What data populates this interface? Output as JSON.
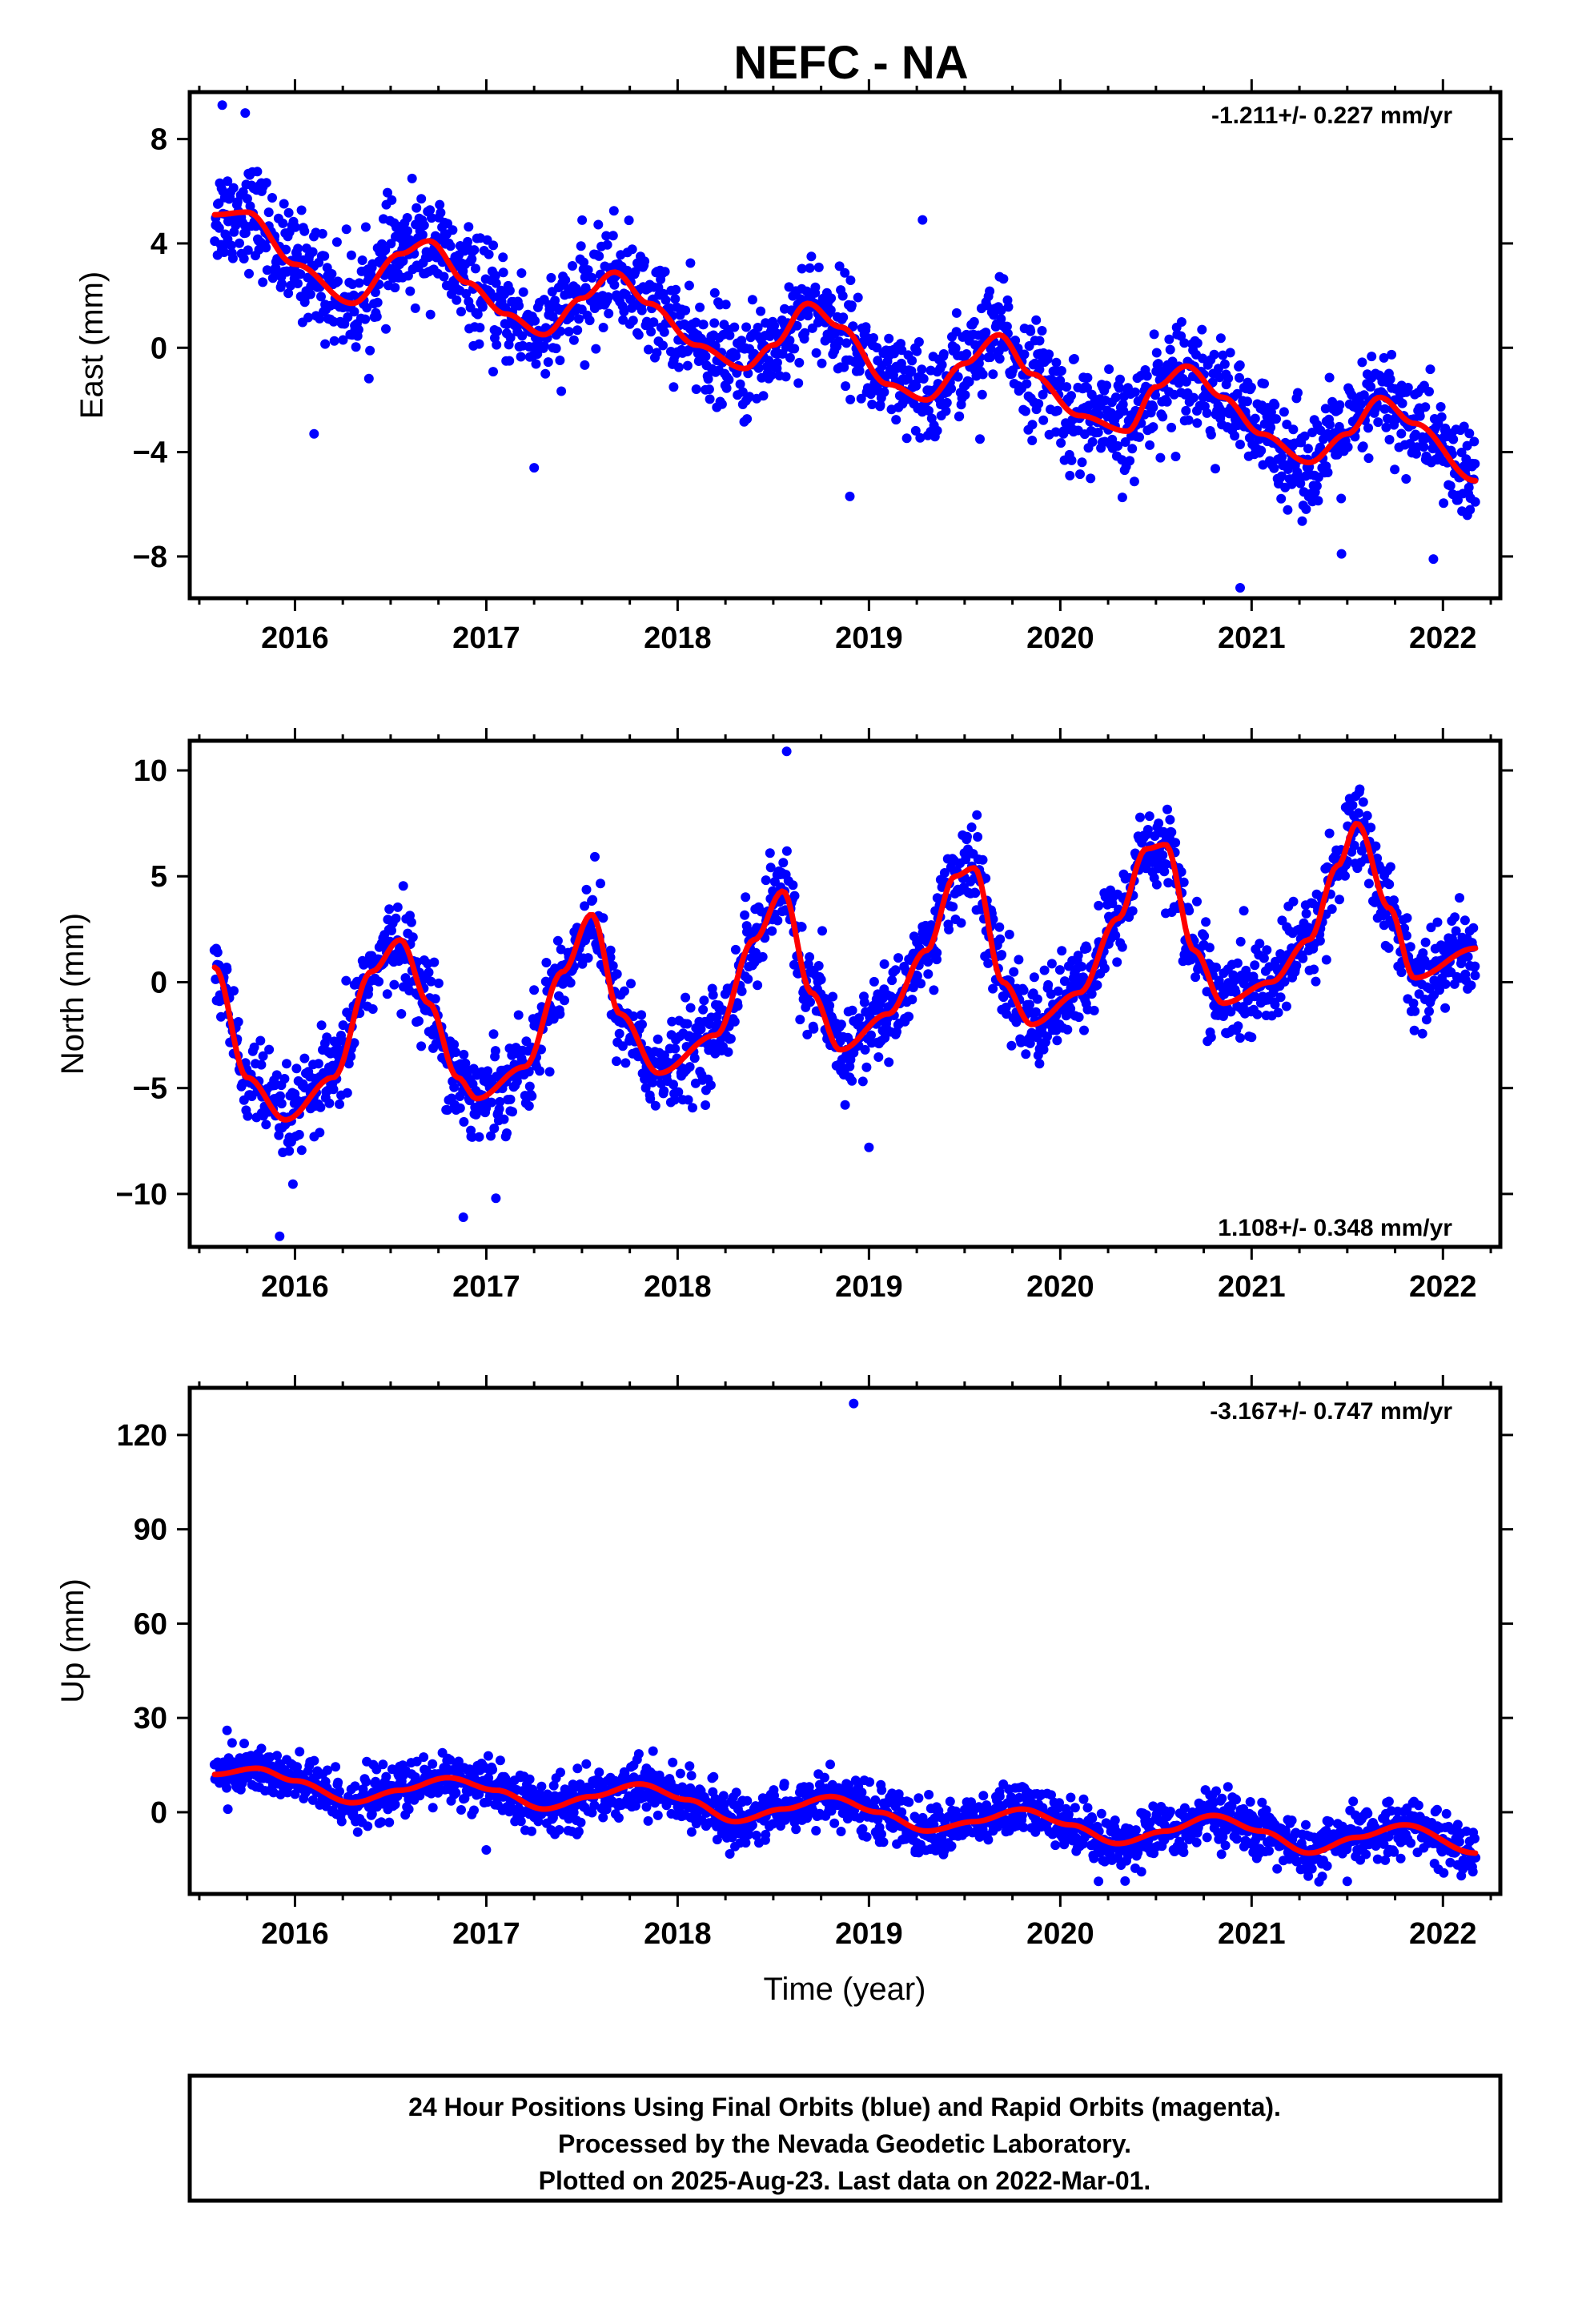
{
  "title": "NEFC - NA",
  "colors": {
    "final_orbits": "#0000ff",
    "fit_model": "#ff0000"
  },
  "chart_data": [
    {
      "id": "east",
      "type": "scatter",
      "ylabel": "East (mm)",
      "xlabel": "",
      "xlim": [
        2015.45,
        2022.3
      ],
      "ylim": [
        -9.6,
        9.8
      ],
      "xticks": [
        2016,
        2017,
        2018,
        2019,
        2020,
        2021,
        2022
      ],
      "yticks": [
        -8,
        -4,
        0,
        4,
        8
      ],
      "rate_text": "-1.211+/- 0.227 mm/yr",
      "rate_position": "top-right",
      "fit_curve": {
        "x": [
          2015.58,
          2015.75,
          2016.0,
          2016.3,
          2016.55,
          2016.7,
          2016.9,
          2017.1,
          2017.3,
          2017.5,
          2017.67,
          2017.85,
          2018.1,
          2018.35,
          2018.5,
          2018.68,
          2018.85,
          2019.1,
          2019.3,
          2019.5,
          2019.68,
          2019.85,
          2020.1,
          2020.35,
          2020.5,
          2020.66,
          2020.85,
          2021.05,
          2021.3,
          2021.5,
          2021.67,
          2021.85,
          2022.17
        ],
        "y": [
          5.1,
          5.2,
          3.2,
          1.7,
          3.6,
          4.1,
          2.5,
          1.3,
          0.5,
          1.9,
          2.9,
          1.7,
          0.1,
          -0.8,
          0.1,
          1.7,
          0.8,
          -1.4,
          -2.0,
          -0.6,
          0.5,
          -1.0,
          -2.6,
          -3.2,
          -1.5,
          -0.7,
          -1.9,
          -3.3,
          -4.4,
          -3.3,
          -1.9,
          -2.9,
          -5.1
        ]
      },
      "scatter_note": "dense daily positions scattered about the fit curve",
      "scatter_spread": 1.3,
      "scatter_outliers": [
        [
          2015.62,
          9.3
        ],
        [
          2015.74,
          9.0
        ],
        [
          2019.28,
          4.9
        ],
        [
          2016.1,
          -3.3
        ],
        [
          2017.25,
          -4.6
        ],
        [
          2018.9,
          -5.7
        ],
        [
          2019.58,
          -3.5
        ],
        [
          2020.05,
          -4.9
        ],
        [
          2020.94,
          -9.2
        ],
        [
          2021.47,
          -7.9
        ],
        [
          2021.95,
          -8.1
        ]
      ]
    },
    {
      "id": "north",
      "type": "scatter",
      "ylabel": "North (mm)",
      "xlabel": "",
      "xlim": [
        2015.45,
        2022.3
      ],
      "ylim": [
        -12.5,
        11.4
      ],
      "xticks": [
        2016,
        2017,
        2018,
        2019,
        2020,
        2021,
        2022
      ],
      "yticks": [
        -10,
        -5,
        0,
        5,
        10
      ],
      "rate_text": "1.108+/- 0.348 mm/yr",
      "rate_position": "bottom-right",
      "fit_curve": {
        "x": [
          2015.58,
          2015.75,
          2015.95,
          2016.2,
          2016.4,
          2016.55,
          2016.7,
          2016.85,
          2016.95,
          2017.2,
          2017.4,
          2017.55,
          2017.7,
          2017.9,
          2018.2,
          2018.4,
          2018.55,
          2018.7,
          2018.85,
          2019.1,
          2019.3,
          2019.45,
          2019.55,
          2019.7,
          2019.85,
          2020.1,
          2020.3,
          2020.45,
          2020.55,
          2020.7,
          2020.85,
          2021.1,
          2021.3,
          2021.45,
          2021.55,
          2021.72,
          2021.85,
          2022.17
        ],
        "y": [
          0.7,
          -4.5,
          -6.5,
          -4.5,
          0.5,
          2.0,
          -1.0,
          -4.5,
          -5.5,
          -4.0,
          0.5,
          3.2,
          -1.5,
          -4.3,
          -2.5,
          2.0,
          4.3,
          -0.5,
          -3.2,
          -1.5,
          1.5,
          5.0,
          5.4,
          0.0,
          -2.0,
          -0.5,
          3.0,
          6.3,
          6.5,
          1.5,
          -1.0,
          0.0,
          2.0,
          5.5,
          7.5,
          3.5,
          0.2,
          1.6
        ]
      },
      "scatter_note": "dense daily positions scattered about the fit curve; 2018 summer peak reaches about 10 mm",
      "scatter_spread": 1.4,
      "scatter_outliers": [
        [
          2015.92,
          -12.0
        ],
        [
          2016.88,
          -11.1
        ],
        [
          2017.05,
          -10.2
        ],
        [
          2018.57,
          10.9
        ],
        [
          2019.0,
          -7.8
        ],
        [
          2021.0,
          -2.6
        ]
      ]
    },
    {
      "id": "up",
      "type": "scatter",
      "ylabel": "Up (mm)",
      "xlabel": "Time (year)",
      "xlim": [
        2015.45,
        2022.3
      ],
      "ylim": [
        -26,
        135
      ],
      "xticks": [
        2016,
        2017,
        2018,
        2019,
        2020,
        2021,
        2022
      ],
      "yticks": [
        0,
        30,
        60,
        90,
        120
      ],
      "rate_text": "-3.167+/- 0.747 mm/yr",
      "rate_position": "top-right",
      "fit_curve": {
        "x": [
          2015.58,
          2015.8,
          2016.0,
          2016.3,
          2016.55,
          2016.8,
          2017.05,
          2017.3,
          2017.55,
          2017.8,
          2018.05,
          2018.3,
          2018.55,
          2018.8,
          2019.05,
          2019.3,
          2019.55,
          2019.8,
          2020.05,
          2020.3,
          2020.55,
          2020.8,
          2021.05,
          2021.3,
          2021.55,
          2021.8,
          2022.17
        ],
        "y": [
          12,
          14,
          10,
          3,
          7,
          11,
          7,
          1,
          5,
          9,
          4,
          -3,
          1,
          5,
          0,
          -6,
          -3,
          1,
          -4,
          -10,
          -6,
          -1,
          -6,
          -13,
          -8,
          -4,
          -13
        ]
      },
      "scatter_note": "dense daily positions scattered about the fit curve",
      "scatter_spread": 5.5,
      "scatter_outliers": [
        [
          2018.92,
          130
        ],
        [
          2020.2,
          -22
        ],
        [
          2021.5,
          -22
        ],
        [
          2017.0,
          -12
        ]
      ]
    }
  ],
  "caption": {
    "lines": [
      "24 Hour Positions Using Final Orbits (blue) and Rapid Orbits (magenta).",
      "Processed by the Nevada Geodetic Laboratory.",
      "Plotted on 2025-Aug-23. Last data on 2022-Mar-01."
    ]
  }
}
